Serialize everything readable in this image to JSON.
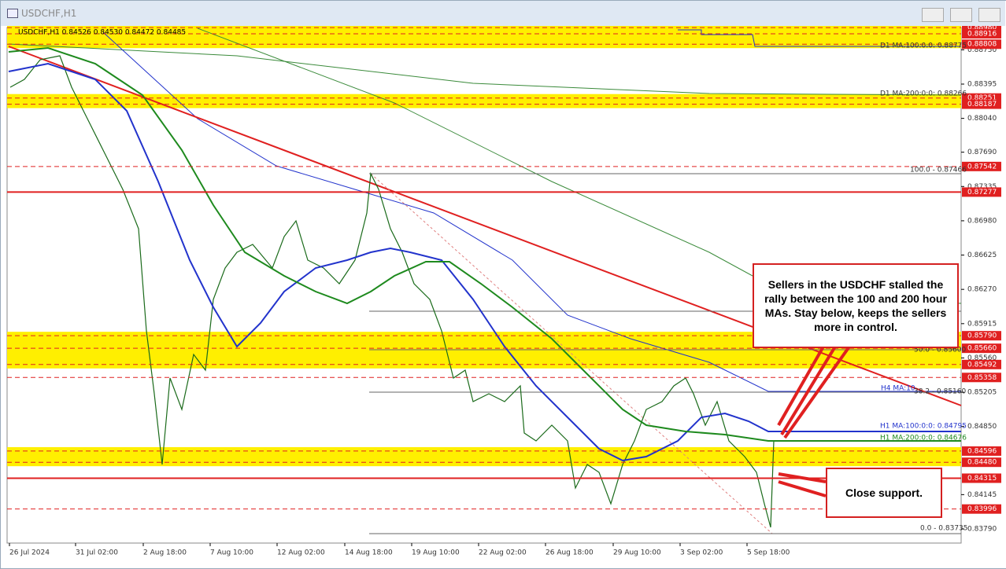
{
  "window": {
    "title": "USDCHF,H1"
  },
  "chart": {
    "header": "USDCHF,H1  0.84526 0.84530 0.84472 0.84485",
    "price_axis": [
      "0.88750",
      "0.88395",
      "0.88040",
      "0.87690",
      "0.87335",
      "0.86980",
      "0.86625",
      "0.86270",
      "0.85915",
      "0.85560",
      "0.85205",
      "0.84850",
      "0.84145",
      "0.83790"
    ],
    "levels": [
      "0.88980",
      "0.88916",
      "0.88808",
      "0.88251",
      "0.88187",
      "0.87542",
      "0.87277",
      "0.85790",
      "0.85660",
      "0.85492",
      "0.85358",
      "0.84596",
      "0.84480",
      "0.84315",
      "0.83996"
    ],
    "time_axis": [
      "26 Jul 2024",
      "31 Jul 02:00",
      "2 Aug 18:00",
      "7 Aug 10:00",
      "12 Aug 02:00",
      "14 Aug 18:00",
      "19 Aug 10:00",
      "22 Aug 02:00",
      "26 Aug 18:00",
      "29 Aug 10:00",
      "3 Sep 02:00",
      "5 Sep 18:00"
    ],
    "line_labels": [
      "D1 MA:100:0:0: 0.88775",
      "D1 MA:200:0:0: 0.88266",
      "100.0 - 0.87466",
      "50.0 - 0.85600",
      "H4 MA:10",
      "38.2 - 0.85160",
      "H1 MA:100:0:0: 0.84795",
      "H1 MA:200:0:0: 0.84676",
      "0.0 - 0.83735"
    ],
    "annotations": [
      "Sellers in the USDCHF stalled the rally between the 100 and 200 hour MAs.  Stay below, keeps the sellers more in control.",
      "Close support."
    ]
  }
}
